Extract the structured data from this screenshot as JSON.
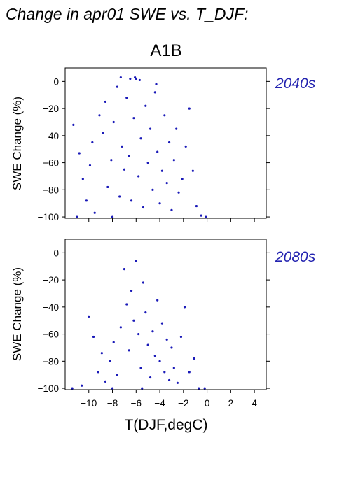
{
  "figure": {
    "title": "Change in apr01 SWE vs. T_DJF:",
    "scenario": "A1B",
    "xlabel": "T(DJF,degC)",
    "point_color": "#1a1ab8",
    "label_color": "#2323b0"
  },
  "chart_data": [
    {
      "type": "scatter",
      "panel_label": "2040s",
      "ylabel": "SWE Change (%)",
      "xlim": [
        -12,
        5
      ],
      "ylim": [
        -101,
        10
      ],
      "xticks": [
        -10,
        -8,
        -6,
        -4,
        -2,
        0,
        2,
        4
      ],
      "yticks": [
        0,
        -20,
        -40,
        -60,
        -80,
        -100
      ],
      "x_tick_labels_shown": false,
      "grid": false,
      "legend": "none",
      "point_color": "#1a1ab8",
      "points": [
        [
          -11.3,
          -32
        ],
        [
          -10.8,
          -53
        ],
        [
          -10.5,
          -72
        ],
        [
          -10.2,
          -88
        ],
        [
          -9.9,
          -62
        ],
        [
          -9.7,
          -45
        ],
        [
          -9.5,
          -97
        ],
        [
          -9.1,
          -25
        ],
        [
          -8.8,
          -38
        ],
        [
          -8.6,
          -15
        ],
        [
          -8.4,
          -78
        ],
        [
          -8.1,
          -58
        ],
        [
          -7.9,
          -30
        ],
        [
          -7.6,
          -4
        ],
        [
          -7.4,
          -85
        ],
        [
          -7.2,
          -48
        ],
        [
          -7.0,
          -65
        ],
        [
          -6.8,
          -12
        ],
        [
          -6.6,
          -55
        ],
        [
          -6.4,
          -88
        ],
        [
          -6.2,
          -27
        ],
        [
          -6.0,
          2
        ],
        [
          -5.8,
          -70
        ],
        [
          -5.6,
          -42
        ],
        [
          -5.4,
          -93
        ],
        [
          -5.2,
          -18
        ],
        [
          -5.0,
          -60
        ],
        [
          -4.8,
          -35
        ],
        [
          -4.6,
          -80
        ],
        [
          -4.4,
          -8
        ],
        [
          -4.2,
          -52
        ],
        [
          -4.0,
          -90
        ],
        [
          -3.8,
          -66
        ],
        [
          -3.6,
          -25
        ],
        [
          -3.4,
          -75
        ],
        [
          -3.2,
          -45
        ],
        [
          -3.0,
          -95
        ],
        [
          -2.8,
          -58
        ],
        [
          -2.6,
          -35
        ],
        [
          -2.4,
          -82
        ],
        [
          -2.1,
          -72
        ],
        [
          -1.8,
          -48
        ],
        [
          -1.5,
          -20
        ],
        [
          -1.2,
          -66
        ],
        [
          -0.9,
          -92
        ],
        [
          -0.5,
          -99
        ],
        [
          -0.1,
          -100
        ],
        [
          -11.0,
          -100
        ],
        [
          -8.0,
          -100
        ],
        [
          -6.5,
          2
        ],
        [
          -6.1,
          3
        ],
        [
          -5.7,
          1
        ],
        [
          -7.3,
          3
        ],
        [
          -4.3,
          -2
        ]
      ],
      "cluster_note": null
    },
    {
      "type": "scatter",
      "panel_label": "2080s",
      "ylabel": "SWE Change (%)",
      "xlabel": "T(DJF,degC)",
      "xlim": [
        -12,
        5
      ],
      "ylim": [
        -101,
        10
      ],
      "xticks": [
        -10,
        -8,
        -6,
        -4,
        -2,
        0,
        2,
        4
      ],
      "xtick_labels": [
        "−10",
        "−8",
        "−6",
        "−4",
        "−2",
        "0",
        "2",
        "4"
      ],
      "yticks": [
        0,
        -20,
        -40,
        -60,
        -80,
        -100
      ],
      "x_tick_labels_shown": true,
      "grid": false,
      "legend": "none",
      "point_color": "#1a1ab8",
      "points": [
        [
          -11.4,
          -100
        ],
        [
          -10.6,
          -98
        ],
        [
          -10.0,
          -47
        ],
        [
          -9.6,
          -62
        ],
        [
          -9.2,
          -88
        ],
        [
          -8.9,
          -74
        ],
        [
          -8.6,
          -95
        ],
        [
          -8.2,
          -80
        ],
        [
          -7.9,
          -66
        ],
        [
          -7.6,
          -90
        ],
        [
          -7.3,
          -55
        ],
        [
          -7.0,
          -12
        ],
        [
          -6.8,
          -38
        ],
        [
          -6.6,
          -72
        ],
        [
          -6.4,
          -28
        ],
        [
          -6.2,
          -50
        ],
        [
          -6.0,
          -6
        ],
        [
          -5.8,
          -60
        ],
        [
          -5.6,
          -85
        ],
        [
          -5.4,
          -22
        ],
        [
          -5.2,
          -44
        ],
        [
          -5.0,
          -68
        ],
        [
          -4.8,
          -92
        ],
        [
          -4.6,
          -58
        ],
        [
          -4.4,
          -76
        ],
        [
          -4.2,
          -35
        ],
        [
          -4.0,
          -80
        ],
        [
          -3.8,
          -52
        ],
        [
          -3.6,
          -88
        ],
        [
          -3.4,
          -64
        ],
        [
          -3.2,
          -94
        ],
        [
          -3.0,
          -70
        ],
        [
          -2.8,
          -85
        ],
        [
          -2.5,
          -96
        ],
        [
          -2.2,
          -62
        ],
        [
          -1.9,
          -40
        ],
        [
          -1.5,
          -88
        ],
        [
          -1.1,
          -78
        ],
        [
          -0.7,
          -100
        ],
        [
          -0.2,
          -100
        ],
        [
          -8.0,
          -100
        ],
        [
          -5.5,
          -100
        ]
      ]
    }
  ]
}
